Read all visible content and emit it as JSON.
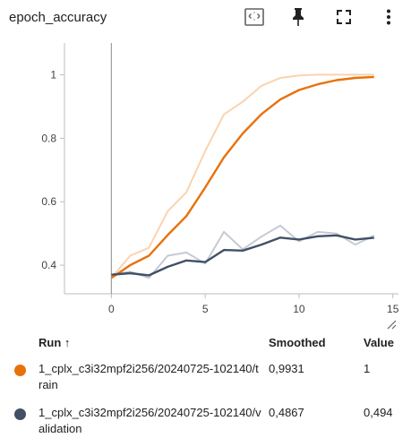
{
  "card": {
    "title": "epoch_accuracy",
    "toolbar": {
      "fit_icon": "fit-to-domain-icon",
      "pin_icon": "pin-icon",
      "fullscreen_icon": "fullscreen-icon",
      "more_icon": "more-vert-icon"
    }
  },
  "chart_data": {
    "type": "line",
    "title": "epoch_accuracy",
    "xlabel": "",
    "ylabel": "",
    "xlim": [
      -2.5,
      15.3
    ],
    "ylim": [
      0.31,
      1.1
    ],
    "xticks": [
      0,
      5,
      10,
      15
    ],
    "yticks": [
      0.4,
      0.6,
      0.8,
      1
    ],
    "xtick_labels": [
      "0",
      "5",
      "10",
      "15"
    ],
    "ytick_labels": [
      "0.4",
      "0.6",
      "0.8",
      "1"
    ],
    "grid": false,
    "series": [
      {
        "name": "1_cplx_c3i32mpf2i256/20240725-102140/train",
        "smoothed": true,
        "color": "#e8710a",
        "raw_color": "#fbd3af",
        "x": [
          0,
          1,
          2,
          3,
          4,
          5,
          6,
          7,
          8,
          9,
          10,
          11,
          12,
          13,
          14
        ],
        "raw": [
          0.36,
          0.43,
          0.455,
          0.57,
          0.63,
          0.76,
          0.875,
          0.915,
          0.965,
          0.99,
          0.998,
          1.0,
          1.0,
          1.0,
          1.0
        ],
        "values": [
          0.36,
          0.4,
          0.43,
          0.495,
          0.555,
          0.645,
          0.74,
          0.815,
          0.876,
          0.922,
          0.952,
          0.97,
          0.983,
          0.99,
          0.9931
        ]
      },
      {
        "name": "1_cplx_c3i32mpf2i256/20240725-102140/validation",
        "smoothed": true,
        "color": "#425066",
        "raw_color": "#c5cad4",
        "x": [
          0,
          1,
          2,
          3,
          4,
          5,
          6,
          7,
          8,
          9,
          10,
          11,
          12,
          13,
          14
        ],
        "raw": [
          0.37,
          0.38,
          0.36,
          0.43,
          0.44,
          0.405,
          0.505,
          0.45,
          0.49,
          0.525,
          0.475,
          0.505,
          0.5,
          0.465,
          0.494
        ],
        "values": [
          0.37,
          0.375,
          0.368,
          0.395,
          0.415,
          0.41,
          0.448,
          0.446,
          0.465,
          0.487,
          0.481,
          0.491,
          0.494,
          0.481,
          0.4867
        ]
      }
    ]
  },
  "table": {
    "headers": {
      "run": "Run ↑",
      "smoothed": "Smoothed",
      "value": "Value"
    },
    "rows": [
      {
        "run": "1_cplx_c3i32mpf2i256/20240725-102140/train",
        "smoothed": "0,9931",
        "value": "1",
        "color": "#e8710a"
      },
      {
        "run": "1_cplx_c3i32mpf2i256/20240725-102140/validation",
        "smoothed": "0,4867",
        "value": "0,494",
        "color": "#425066"
      }
    ]
  }
}
